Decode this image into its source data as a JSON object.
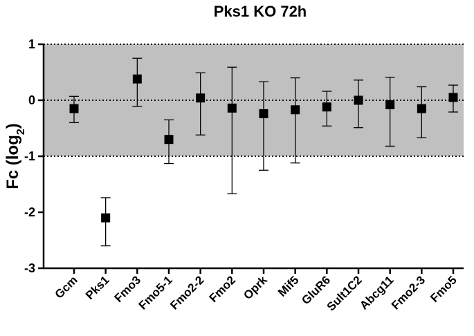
{
  "chart_data": {
    "type": "scatter",
    "title": "Pks1 KO 72h",
    "ylabel": {
      "main": "Fc (log",
      "sub": "2",
      "close": ")"
    },
    "ylim": [
      -3,
      1
    ],
    "yticks": [
      1,
      0,
      -1,
      -2,
      -3
    ],
    "ytick_labels": [
      "1",
      "0",
      "-1",
      "-2",
      "-3"
    ],
    "shaded_band": [
      -1,
      1
    ],
    "reference_lines": [
      1,
      0,
      -1
    ],
    "categories": [
      "Gcm",
      "Pks1",
      "Fmo3",
      "Fmo5-1",
      "Fmo2-2",
      "Fmo2",
      "Oprk",
      "Mif5",
      "GluR6",
      "Sult1C2",
      "Abcg11",
      "Fmo2-3",
      "Fmo5"
    ],
    "values": [
      -0.15,
      -2.1,
      0.38,
      -0.7,
      0.04,
      -0.14,
      -0.24,
      -0.17,
      -0.12,
      0.0,
      -0.08,
      -0.15,
      0.05
    ],
    "error_high": [
      0.07,
      -1.74,
      0.75,
      -0.35,
      0.49,
      0.59,
      0.33,
      0.4,
      0.16,
      0.36,
      0.41,
      0.24,
      0.27
    ],
    "error_low": [
      -0.4,
      -2.6,
      -0.11,
      -1.13,
      -0.62,
      -1.67,
      -1.25,
      -1.12,
      -0.46,
      -0.49,
      -0.82,
      -0.67,
      -0.21
    ],
    "colors": {
      "marker": "#000000",
      "band": "#c0c0c0",
      "axis": "#000000"
    }
  }
}
